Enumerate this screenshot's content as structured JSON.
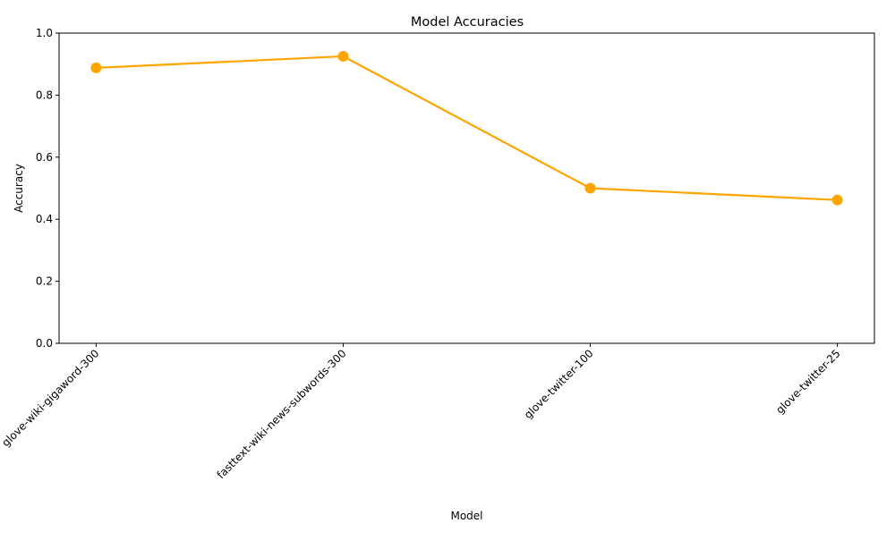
{
  "chart_data": {
    "type": "line",
    "title": "Model Accuracies",
    "xlabel": "Model",
    "ylabel": "Accuracy",
    "categories": [
      "glove-wiki-gigaword-300",
      "fasttext-wiki-news-subwords-300",
      "glove-twitter-100",
      "glove-twitter-25"
    ],
    "series": [
      {
        "values": [
          0.888,
          0.925,
          0.5,
          0.462
        ],
        "color": "#FFA500",
        "marker": "circle"
      }
    ],
    "ylim": [
      0,
      1.0
    ],
    "yticks": [
      "0.0",
      "0.2",
      "0.4",
      "0.6",
      "0.8",
      "1.0"
    ],
    "grid": false,
    "legend": "none",
    "xtick_rotation": 45
  }
}
